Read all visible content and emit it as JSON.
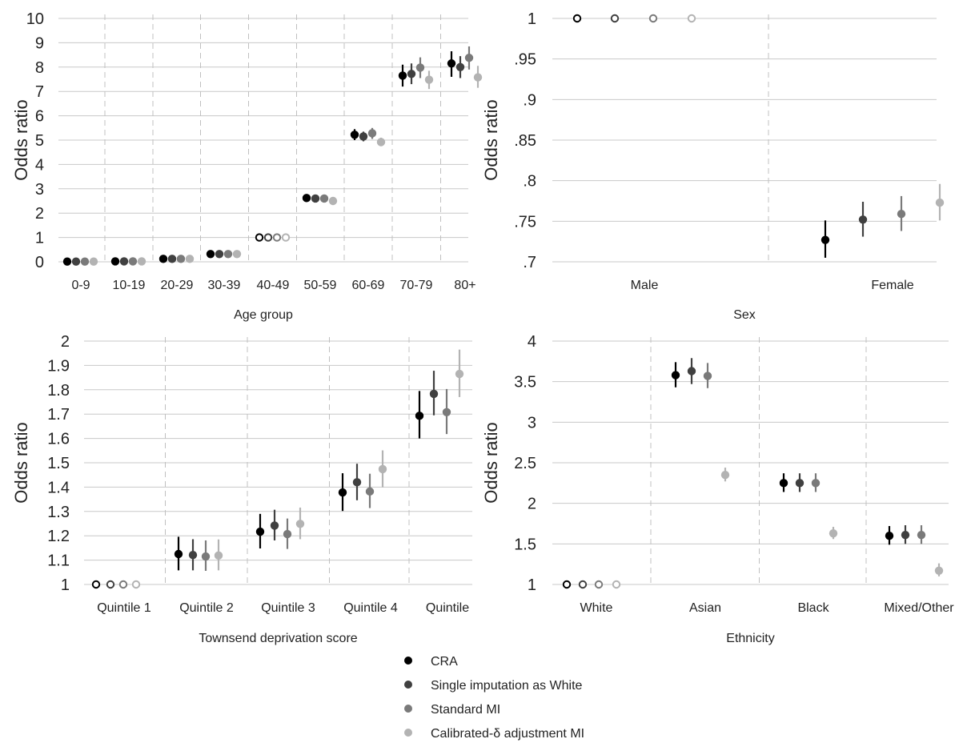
{
  "legend": [
    {
      "name": "CRA",
      "color": "#000000"
    },
    {
      "name": "Single imputation as White",
      "color": "#404040"
    },
    {
      "name": "Standard MI",
      "color": "#7a7a7a"
    },
    {
      "name": "Calibrated-δ adjustment MI",
      "color": "#b3b3b3"
    }
  ],
  "chart_data": [
    {
      "type": "scatter",
      "title": "",
      "xlabel": "Age group",
      "ylabel": "Odds ratio",
      "ylim": [
        0,
        10
      ],
      "yticks": [
        0,
        1,
        2,
        3,
        4,
        5,
        6,
        7,
        8,
        9,
        10
      ],
      "ytick_labels": [
        "0",
        "1",
        "2",
        "3",
        "4",
        "5",
        "6",
        "7",
        "8",
        "9",
        "10"
      ],
      "categories": [
        "0-9",
        "10-19",
        "20-29",
        "30-39",
        "40-49",
        "50-59",
        "60-69",
        "70-79",
        "80+"
      ],
      "reference_category": "40-49",
      "grid": true,
      "series": [
        {
          "name": "CRA",
          "values": [
            0.01,
            0.02,
            0.12,
            0.32,
            1,
            2.62,
            5.22,
            7.65,
            8.15
          ],
          "lower": [
            0.01,
            0.02,
            0.1,
            0.29,
            1,
            2.55,
            5.0,
            7.2,
            7.6
          ],
          "upper": [
            0.02,
            0.03,
            0.14,
            0.35,
            1,
            2.7,
            5.45,
            8.1,
            8.65
          ]
        },
        {
          "name": "Single imputation as White",
          "values": [
            0.01,
            0.02,
            0.12,
            0.32,
            1,
            2.6,
            5.15,
            7.72,
            8.0
          ],
          "lower": [
            0.01,
            0.02,
            0.1,
            0.29,
            1,
            2.53,
            4.95,
            7.3,
            7.55
          ],
          "upper": [
            0.02,
            0.03,
            0.14,
            0.35,
            1,
            2.67,
            5.35,
            8.15,
            8.45
          ]
        },
        {
          "name": "Standard MI",
          "values": [
            0.01,
            0.02,
            0.12,
            0.32,
            1,
            2.6,
            5.28,
            7.98,
            8.38
          ],
          "lower": [
            0.01,
            0.02,
            0.1,
            0.29,
            1,
            2.53,
            5.05,
            7.55,
            7.9
          ],
          "upper": [
            0.02,
            0.03,
            0.14,
            0.35,
            1,
            2.67,
            5.5,
            8.4,
            8.85
          ]
        },
        {
          "name": "Calibrated-δ adjustment MI",
          "values": [
            0.01,
            0.02,
            0.12,
            0.32,
            1,
            2.5,
            4.92,
            7.48,
            7.58
          ],
          "lower": [
            0.01,
            0.02,
            0.1,
            0.29,
            1,
            2.43,
            4.75,
            7.1,
            7.15
          ],
          "upper": [
            0.02,
            0.03,
            0.14,
            0.35,
            1,
            2.57,
            5.1,
            7.85,
            8.05
          ]
        }
      ]
    },
    {
      "type": "scatter",
      "title": "",
      "xlabel": "Sex",
      "ylabel": "Odds ratio",
      "ylim": [
        0.7,
        1.0
      ],
      "yticks": [
        0.7,
        0.75,
        0.8,
        0.85,
        0.9,
        0.95,
        1.0
      ],
      "ytick_labels": [
        ".7",
        ".75",
        ".8",
        ".85",
        ".9",
        ".95",
        "1"
      ],
      "categories": [
        "Male",
        "Female"
      ],
      "reference_category": "Male",
      "grid": true,
      "series": [
        {
          "name": "CRA",
          "values": [
            1,
            0.727
          ],
          "lower": [
            1,
            0.705
          ],
          "upper": [
            1,
            0.751
          ]
        },
        {
          "name": "Single imputation as White",
          "values": [
            1,
            0.752
          ],
          "lower": [
            1,
            0.731
          ],
          "upper": [
            1,
            0.774
          ]
        },
        {
          "name": "Standard MI",
          "values": [
            1,
            0.759
          ],
          "lower": [
            1,
            0.738
          ],
          "upper": [
            1,
            0.781
          ]
        },
        {
          "name": "Calibrated-δ adjustment MI",
          "values": [
            1,
            0.773
          ],
          "lower": [
            1,
            0.751
          ],
          "upper": [
            1,
            0.796
          ]
        }
      ]
    },
    {
      "type": "scatter",
      "title": "",
      "xlabel": "Townsend deprivation score",
      "ylabel": "Odds ratio",
      "ylim": [
        1,
        2
      ],
      "yticks": [
        1,
        1.1,
        1.2,
        1.3,
        1.4,
        1.5,
        1.6,
        1.7,
        1.8,
        1.9,
        2
      ],
      "ytick_labels": [
        "1",
        "1.1",
        "1.2",
        "1.3",
        "1.4",
        "1.5",
        "1.6",
        "1.7",
        "1.8",
        "1.9",
        "2"
      ],
      "categories": [
        "Quintile 1",
        "Quintile 2",
        "Quintile 3",
        "Quintile 4",
        "Quintile"
      ],
      "reference_category": "Quintile 1",
      "grid": true,
      "series": [
        {
          "name": "CRA",
          "values": [
            1,
            1.125,
            1.217,
            1.378,
            1.693
          ],
          "lower": [
            1,
            1.058,
            1.148,
            1.302,
            1.6
          ],
          "upper": [
            1,
            1.196,
            1.29,
            1.457,
            1.795
          ]
        },
        {
          "name": "Single imputation as White",
          "values": [
            1,
            1.121,
            1.242,
            1.42,
            1.783
          ],
          "lower": [
            1,
            1.058,
            1.181,
            1.346,
            1.695
          ],
          "upper": [
            1,
            1.186,
            1.307,
            1.496,
            1.878
          ]
        },
        {
          "name": "Standard MI",
          "values": [
            1,
            1.115,
            1.207,
            1.382,
            1.708
          ],
          "lower": [
            1,
            1.056,
            1.146,
            1.314,
            1.618
          ],
          "upper": [
            1,
            1.181,
            1.271,
            1.455,
            1.803
          ]
        },
        {
          "name": "Calibrated-δ adjustment MI",
          "values": [
            1,
            1.119,
            1.249,
            1.474,
            1.865
          ],
          "lower": [
            1,
            1.058,
            1.186,
            1.399,
            1.77
          ],
          "upper": [
            1,
            1.185,
            1.316,
            1.551,
            1.965
          ]
        }
      ]
    },
    {
      "type": "scatter",
      "title": "",
      "xlabel": "Ethnicity",
      "ylabel": "Odds ratio",
      "ylim": [
        1,
        4
      ],
      "yticks": [
        1,
        1.5,
        2,
        2.5,
        3,
        3.5,
        4
      ],
      "ytick_labels": [
        "1",
        "1.5",
        "2",
        "2.5",
        "3",
        "3.5",
        "4"
      ],
      "categories": [
        "White",
        "Asian",
        "Black",
        "Mixed/Other"
      ],
      "reference_category": "White",
      "grid": true,
      "series": [
        {
          "name": "CRA",
          "values": [
            1,
            3.58,
            2.25,
            1.6
          ],
          "lower": [
            1,
            3.43,
            2.14,
            1.49
          ],
          "upper": [
            1,
            3.74,
            2.37,
            1.72
          ]
        },
        {
          "name": "Single imputation as White",
          "values": [
            1,
            3.63,
            2.25,
            1.61
          ],
          "lower": [
            1,
            3.47,
            2.14,
            1.5
          ],
          "upper": [
            1,
            3.79,
            2.37,
            1.73
          ]
        },
        {
          "name": "Standard MI",
          "values": [
            1,
            3.57,
            2.25,
            1.61
          ],
          "lower": [
            1,
            3.42,
            2.14,
            1.5
          ],
          "upper": [
            1,
            3.73,
            2.37,
            1.73
          ]
        },
        {
          "name": "Calibrated-δ adjustment MI",
          "values": [
            1,
            2.35,
            1.63,
            1.17
          ],
          "lower": [
            1,
            2.27,
            1.56,
            1.1
          ],
          "upper": [
            1,
            2.44,
            1.71,
            1.26
          ]
        }
      ]
    }
  ]
}
